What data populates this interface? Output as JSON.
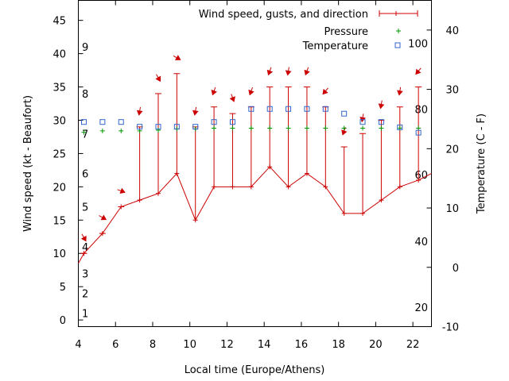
{
  "chart_data": {
    "type": "line",
    "title": "",
    "xlabel": "Local time (Europe/Athens)",
    "ylabel": "Wind speed (kt - Beaufort)",
    "y2label": "Temperature (C - F)",
    "xlim": [
      4,
      23
    ],
    "ylim": [
      -1,
      48
    ],
    "y2lim": [
      -10,
      45
    ],
    "x_ticks": [
      4,
      6,
      8,
      10,
      12,
      14,
      16,
      18,
      20,
      22
    ],
    "y_ticks": [
      0,
      5,
      10,
      15,
      20,
      25,
      30,
      35,
      40,
      45
    ],
    "y2_ticks": [
      -10,
      0,
      10,
      20,
      30,
      40
    ],
    "beaufort_labels": [
      {
        "label": "1",
        "y": 1
      },
      {
        "label": "2",
        "y": 4
      },
      {
        "label": "3",
        "y": 7
      },
      {
        "label": "4",
        "y": 11
      },
      {
        "label": "5",
        "y": 17
      },
      {
        "label": "6",
        "y": 22
      },
      {
        "label": "7",
        "y": 28
      },
      {
        "label": "8",
        "y": 34
      },
      {
        "label": "9",
        "y": 41
      }
    ],
    "fahrenheit_labels": [
      {
        "label": "20",
        "y2": -6.7
      },
      {
        "label": "40",
        "y2": 4.4
      },
      {
        "label": "60",
        "y2": 15.6
      },
      {
        "label": "80",
        "y2": 26.7
      },
      {
        "label": "100",
        "y2": 37.8
      }
    ],
    "legend": [
      "Wind speed, gusts, and direction",
      "Pressure",
      "Temperature"
    ],
    "legend_position": "top-right",
    "colors": {
      "wind": "#cc0000",
      "pressure": "#009900",
      "temperature": "#3366cc",
      "axis": "#000000"
    },
    "series": [
      {
        "name": "Wind speed, gusts, and direction",
        "x": [
          4,
          4.3,
          5.3,
          6.3,
          7.3,
          8.3,
          9.3,
          10.3,
          11.3,
          12.3,
          13.3,
          14.3,
          15.3,
          16.3,
          17.3,
          18.3,
          19.3,
          20.3,
          21.3,
          22.3,
          23
        ],
        "values": [
          8.5,
          10,
          13,
          17,
          18,
          19,
          22,
          15,
          20,
          20,
          20,
          23,
          20,
          22,
          20,
          16,
          16,
          18,
          20,
          21,
          22
        ],
        "gusts": [
          null,
          10,
          13,
          17,
          29,
          34,
          37,
          29,
          32,
          31,
          32,
          35,
          35,
          35,
          32,
          26,
          28,
          30,
          32,
          35,
          null
        ],
        "direction_deg": [
          null,
          330,
          300,
          290,
          10,
          330,
          300,
          10,
          20,
          340,
          20,
          20,
          10,
          20,
          40,
          20,
          10,
          10,
          10,
          40,
          null
        ]
      },
      {
        "name": "Pressure",
        "x": [
          4.3,
          5.3,
          6.3,
          7.3,
          8.3,
          9.3,
          10.3,
          11.3,
          12.3,
          13.3,
          14.3,
          15.3,
          16.3,
          17.3,
          18.3,
          19.3,
          20.3,
          21.3,
          22.3
        ],
        "values": [
          28.2,
          28.4,
          28.4,
          28.4,
          28.5,
          28.7,
          28.7,
          28.8,
          28.8,
          28.8,
          28.8,
          28.8,
          28.8,
          28.8,
          28.8,
          28.8,
          28.8,
          28.8,
          28.8
        ]
      },
      {
        "name": "Temperature",
        "x": [
          4.3,
          5.3,
          6.3,
          7.3,
          8.3,
          9.3,
          10.3,
          11.3,
          12.3,
          13.3,
          14.3,
          15.3,
          16.3,
          17.3,
          18.3,
          19.3,
          20.3,
          21.3,
          22.3
        ],
        "values": [
          24.5,
          24.5,
          24.5,
          23.7,
          23.7,
          23.7,
          23.7,
          24.5,
          24.5,
          26.7,
          26.7,
          26.7,
          26.7,
          26.7,
          25.9,
          24.5,
          24.5,
          23.6,
          22.7
        ]
      }
    ]
  }
}
